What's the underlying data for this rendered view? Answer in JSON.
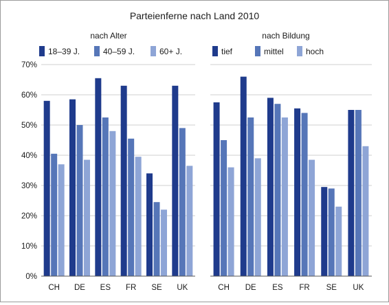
{
  "chart_data": {
    "type": "bar",
    "title": "Parteienferne nach Land 2010",
    "categories": [
      "CH",
      "DE",
      "ES",
      "FR",
      "SE",
      "UK"
    ],
    "yticks": [
      "0%",
      "10%",
      "20%",
      "30%",
      "40%",
      "50%",
      "60%",
      "70%"
    ],
    "ylim": [
      0,
      70
    ],
    "grid": true,
    "panels": [
      {
        "subtitle": "nach Alter",
        "series": [
          {
            "name": "18–39 J.",
            "color": "#1f3b8c",
            "values": [
              58,
              58.5,
              65.5,
              63,
              34,
              63
            ]
          },
          {
            "name": "40–59 J.",
            "color": "#5676b8",
            "values": [
              40.5,
              50,
              52.5,
              45.5,
              24.5,
              49
            ]
          },
          {
            "name": "60+ J.",
            "color": "#8ea5d6",
            "values": [
              37,
              38.5,
              48,
              39.5,
              22,
              36.5
            ]
          }
        ]
      },
      {
        "subtitle": "nach Bildung",
        "series": [
          {
            "name": "tief",
            "color": "#1f3b8c",
            "values": [
              57.5,
              66,
              59,
              55.5,
              29.5,
              55
            ]
          },
          {
            "name": "mittel",
            "color": "#5676b8",
            "values": [
              45,
              52.5,
              57,
              54,
              29,
              55
            ]
          },
          {
            "name": "hoch",
            "color": "#8ea5d6",
            "values": [
              36,
              39,
              52.5,
              38.5,
              23,
              43
            ]
          }
        ]
      }
    ]
  }
}
